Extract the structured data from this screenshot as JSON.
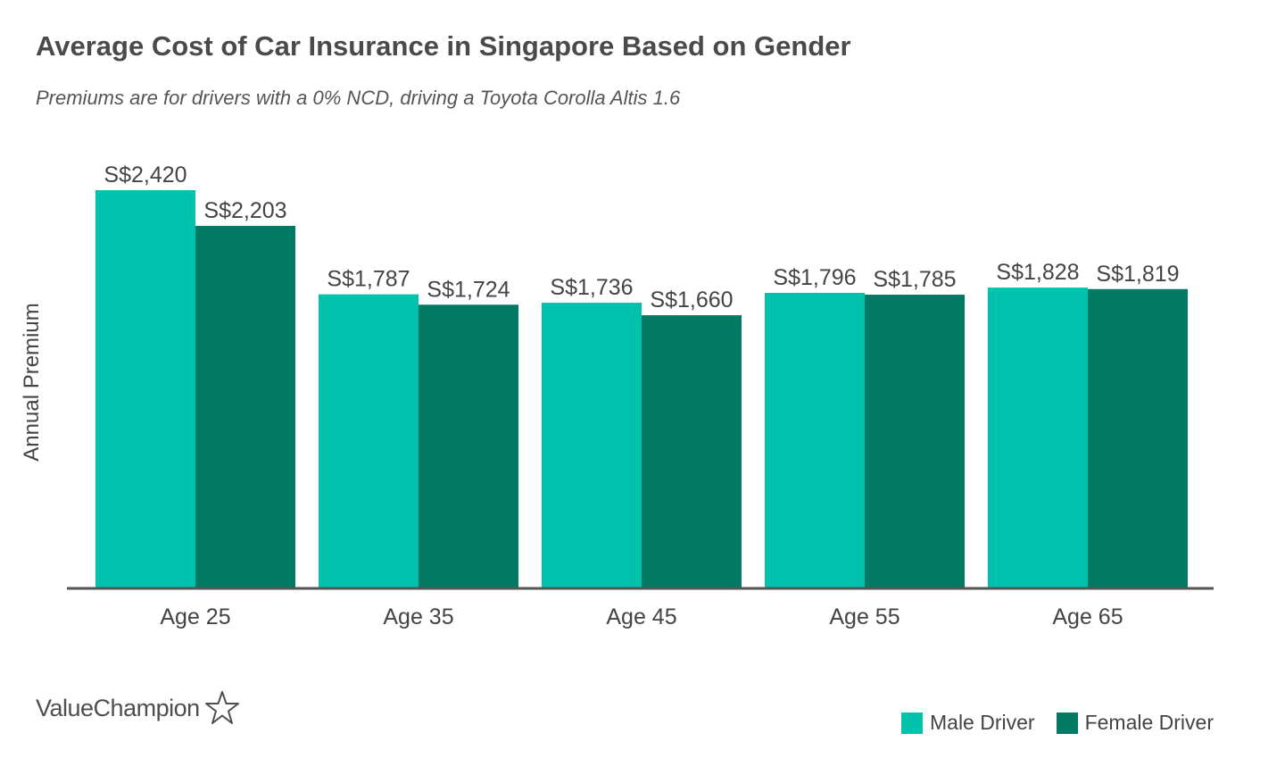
{
  "chart_data": {
    "type": "bar",
    "title": "Average Cost of Car Insurance in Singapore Based on Gender",
    "subtitle": "Premiums are for drivers with a 0% NCD, driving a Toyota Corolla Altis 1.6",
    "ylabel": "Annual Premium",
    "xlabel": "",
    "categories": [
      "Age 25",
      "Age 35",
      "Age 45",
      "Age 55",
      "Age 65"
    ],
    "series": [
      {
        "name": "Male Driver",
        "color": "#00c2ad",
        "values": [
          2420,
          1787,
          1736,
          1796,
          1828
        ],
        "labels": [
          "S$2,420",
          "S$1,787",
          "S$1,736",
          "S$1,796",
          "S$1,828"
        ]
      },
      {
        "name": "Female Driver",
        "color": "#007a63",
        "values": [
          2203,
          1724,
          1660,
          1785,
          1819
        ],
        "labels": [
          "S$2,203",
          "S$1,724",
          "S$1,660",
          "S$1,785",
          "S$1,819"
        ]
      }
    ],
    "ylim": [
      0,
      2420
    ],
    "grid": false,
    "legend_position": "bottom-right"
  },
  "branding": {
    "logo_text": "ValueChampion",
    "logo_icon": "star-outline-icon"
  },
  "colors": {
    "axis": "#555555",
    "text": "#444444"
  }
}
